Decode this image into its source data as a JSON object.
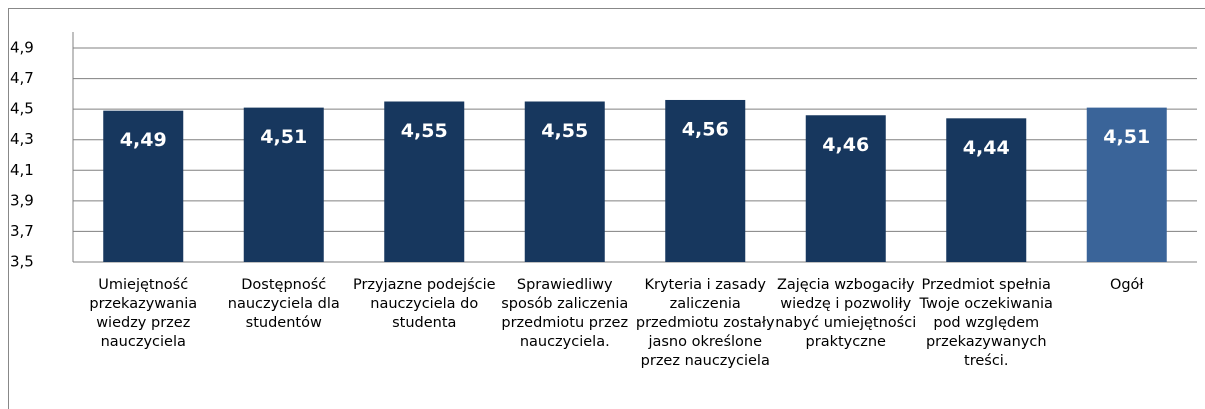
{
  "chart_data": {
    "type": "bar",
    "categories": [
      "Umiejętność przekazywania wiedzy przez nauczyciela",
      "Dostępność nauczyciela dla studentów",
      "Przyjazne podejście nauczyciela do studenta",
      "Sprawiedliwy sposób zaliczenia przedmiotu przez nauczyciela.",
      "Kryteria i zasady zaliczenia przedmiotu zostały jasno określone przez nauczyciela",
      "Zajęcia wzbogaciły wiedzę i pozwoliły nabyć umiejętności praktyczne",
      "Przedmiot spełnia Twoje oczekiwania pod względem przekazywanych treści.",
      "Ogół"
    ],
    "values": [
      4.49,
      4.51,
      4.55,
      4.55,
      4.56,
      4.46,
      4.44,
      4.51
    ],
    "value_labels": [
      "4,49",
      "4,51",
      "4,55",
      "4,55",
      "4,56",
      "4,46",
      "4,44",
      "4,51"
    ],
    "colors": [
      "#17375e",
      "#17375e",
      "#17375e",
      "#17375e",
      "#17375e",
      "#17375e",
      "#17375e",
      "#3a6499"
    ],
    "ylim": [
      3.5,
      4.9
    ],
    "yticks": [
      {
        "value": 3.5,
        "label": "3,5"
      },
      {
        "value": 3.7,
        "label": "3,7"
      },
      {
        "value": 3.9,
        "label": "3,9"
      },
      {
        "value": 4.1,
        "label": "4,1"
      },
      {
        "value": 4.3,
        "label": "4,3"
      },
      {
        "value": 4.5,
        "label": "4,5"
      },
      {
        "value": 4.7,
        "label": "4,7"
      },
      {
        "value": 4.9,
        "label": "4,9"
      }
    ],
    "grid": true
  }
}
